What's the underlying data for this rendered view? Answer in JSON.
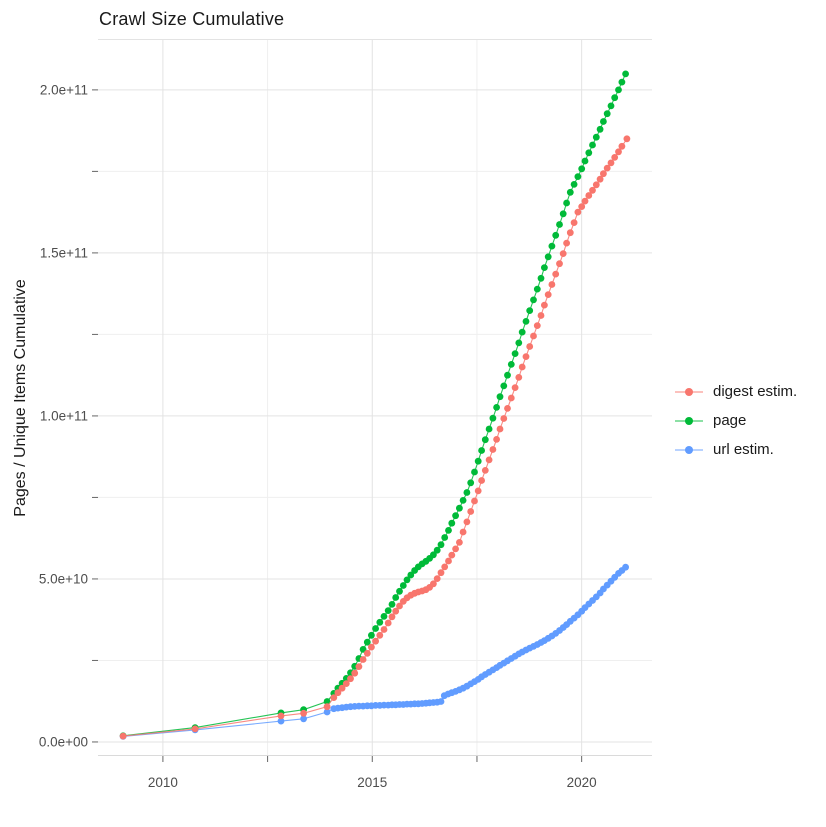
{
  "chart_data": {
    "type": "scatter-line",
    "title": "Crawl Size Cumulative",
    "xlabel": "",
    "ylabel": "Pages / Unique Items Cumulative",
    "value_unit": "point values = [year, pages in billions (1e9)]",
    "xlim": [
      2008.45,
      2021.68
    ],
    "ylim_e9": [
      -4.0,
      215.3
    ],
    "x_ticks": [
      {
        "value": 2010,
        "label": "2010"
      },
      {
        "value": 2015,
        "label": "2015"
      },
      {
        "value": 2020,
        "label": "2020"
      }
    ],
    "x_minor_ticks": [
      2012.5,
      2017.5
    ],
    "y_ticks": [
      {
        "value": 0,
        "label": "0.0e+00"
      },
      {
        "value": 50,
        "label": "5.0e+10"
      },
      {
        "value": 100,
        "label": "1.0e+11"
      },
      {
        "value": 150,
        "label": "1.5e+11"
      },
      {
        "value": 200,
        "label": "2.0e+11"
      }
    ],
    "y_minor_ticks": [
      25,
      75,
      125,
      175
    ],
    "grid": true,
    "legend_position": "right",
    "colors": {
      "background": "#FFFFFF",
      "grid_major": "#E3E3E3",
      "grid_minor": "#EFEFEF",
      "axis_line": "#DADADA",
      "tick_mark": "#666666",
      "tick_label": "#4D4D4D",
      "title_text": "#1A1A1A",
      "legend_text": "#1A1A1A"
    },
    "draw_order": [
      "page",
      "url estim.",
      "digest estim."
    ],
    "series": [
      {
        "name": "digest estim.",
        "color": "#F8766D",
        "points": [
          [
            2009.05,
            1.8
          ],
          [
            2010.77,
            4.0
          ],
          [
            2012.82,
            8.0
          ],
          [
            2013.36,
            8.8
          ],
          [
            2013.92,
            10.8
          ],
          [
            2014.08,
            13.6
          ],
          [
            2014.18,
            15.1
          ],
          [
            2014.28,
            16.5
          ],
          [
            2014.38,
            17.9
          ],
          [
            2014.48,
            19.4
          ],
          [
            2014.58,
            21.1
          ],
          [
            2014.68,
            23.1
          ],
          [
            2014.78,
            25.3
          ],
          [
            2014.88,
            27.2
          ],
          [
            2014.98,
            29.1
          ],
          [
            2015.08,
            30.9
          ],
          [
            2015.18,
            32.7
          ],
          [
            2015.28,
            34.5
          ],
          [
            2015.38,
            36.5
          ],
          [
            2015.47,
            38.4
          ],
          [
            2015.56,
            40.1
          ],
          [
            2015.65,
            41.7
          ],
          [
            2015.74,
            43.1
          ],
          [
            2015.83,
            44.2
          ],
          [
            2015.92,
            45.0
          ],
          [
            2016.01,
            45.6
          ],
          [
            2016.1,
            46.0
          ],
          [
            2016.19,
            46.3
          ],
          [
            2016.28,
            46.7
          ],
          [
            2016.37,
            47.4
          ],
          [
            2016.46,
            48.5
          ],
          [
            2016.55,
            50.1
          ],
          [
            2016.64,
            51.9
          ],
          [
            2016.73,
            53.7
          ],
          [
            2016.82,
            55.5
          ],
          [
            2016.9,
            57.3
          ],
          [
            2016.99,
            59.2
          ],
          [
            2017.08,
            61.2
          ],
          [
            2017.17,
            64.4
          ],
          [
            2017.26,
            67.5
          ],
          [
            2017.35,
            70.7
          ],
          [
            2017.44,
            73.9
          ],
          [
            2017.53,
            77.0
          ],
          [
            2017.61,
            80.2
          ],
          [
            2017.7,
            83.3
          ],
          [
            2017.79,
            86.5
          ],
          [
            2017.88,
            89.7
          ],
          [
            2017.97,
            92.8
          ],
          [
            2018.05,
            96.0
          ],
          [
            2018.14,
            99.2
          ],
          [
            2018.23,
            102.3
          ],
          [
            2018.32,
            105.5
          ],
          [
            2018.41,
            108.7
          ],
          [
            2018.5,
            111.8
          ],
          [
            2018.58,
            115.0
          ],
          [
            2018.67,
            118.2
          ],
          [
            2018.76,
            121.3
          ],
          [
            2018.85,
            124.5
          ],
          [
            2018.94,
            127.7
          ],
          [
            2019.03,
            130.8
          ],
          [
            2019.11,
            134.0
          ],
          [
            2019.2,
            137.2
          ],
          [
            2019.29,
            140.3
          ],
          [
            2019.38,
            143.5
          ],
          [
            2019.47,
            146.7
          ],
          [
            2019.56,
            149.8
          ],
          [
            2019.64,
            153.0
          ],
          [
            2019.73,
            156.2
          ],
          [
            2019.82,
            159.3
          ],
          [
            2019.91,
            162.5
          ],
          [
            2020.0,
            164.2
          ],
          [
            2020.08,
            165.9
          ],
          [
            2020.17,
            167.6
          ],
          [
            2020.26,
            169.2
          ],
          [
            2020.35,
            170.9
          ],
          [
            2020.44,
            172.6
          ],
          [
            2020.52,
            174.3
          ],
          [
            2020.61,
            176.0
          ],
          [
            2020.7,
            177.6
          ],
          [
            2020.79,
            179.3
          ],
          [
            2020.88,
            181.0
          ],
          [
            2020.96,
            182.7
          ],
          [
            2021.08,
            185.0
          ]
        ]
      },
      {
        "name": "page",
        "color": "#00BA38",
        "points": [
          [
            2009.05,
            1.9
          ],
          [
            2010.77,
            4.4
          ],
          [
            2012.82,
            8.9
          ],
          [
            2013.36,
            9.9
          ],
          [
            2013.92,
            12.4
          ],
          [
            2014.08,
            14.9
          ],
          [
            2014.18,
            16.5
          ],
          [
            2014.28,
            18.0
          ],
          [
            2014.38,
            19.5
          ],
          [
            2014.48,
            21.2
          ],
          [
            2014.58,
            23.2
          ],
          [
            2014.68,
            25.6
          ],
          [
            2014.78,
            28.4
          ],
          [
            2014.88,
            30.6
          ],
          [
            2014.98,
            32.7
          ],
          [
            2015.08,
            34.8
          ],
          [
            2015.18,
            36.7
          ],
          [
            2015.28,
            38.5
          ],
          [
            2015.38,
            40.3
          ],
          [
            2015.47,
            42.2
          ],
          [
            2015.56,
            44.3
          ],
          [
            2015.65,
            46.2
          ],
          [
            2015.74,
            48.0
          ],
          [
            2015.83,
            49.7
          ],
          [
            2015.92,
            51.2
          ],
          [
            2016.01,
            52.6
          ],
          [
            2016.1,
            53.7
          ],
          [
            2016.19,
            54.6
          ],
          [
            2016.28,
            55.4
          ],
          [
            2016.37,
            56.3
          ],
          [
            2016.46,
            57.4
          ],
          [
            2016.55,
            58.8
          ],
          [
            2016.64,
            60.5
          ],
          [
            2016.73,
            62.7
          ],
          [
            2016.82,
            64.9
          ],
          [
            2016.9,
            67.1
          ],
          [
            2016.99,
            69.4
          ],
          [
            2017.08,
            71.7
          ],
          [
            2017.17,
            74.1
          ],
          [
            2017.26,
            76.5
          ],
          [
            2017.35,
            79.5
          ],
          [
            2017.44,
            82.8
          ],
          [
            2017.53,
            86.1
          ],
          [
            2017.61,
            89.4
          ],
          [
            2017.7,
            92.7
          ],
          [
            2017.79,
            96.0
          ],
          [
            2017.88,
            99.3
          ],
          [
            2017.97,
            102.6
          ],
          [
            2018.05,
            105.9
          ],
          [
            2018.14,
            109.2
          ],
          [
            2018.23,
            112.5
          ],
          [
            2018.32,
            115.8
          ],
          [
            2018.41,
            119.1
          ],
          [
            2018.5,
            122.4
          ],
          [
            2018.58,
            125.7
          ],
          [
            2018.67,
            129.0
          ],
          [
            2018.76,
            132.3
          ],
          [
            2018.85,
            135.6
          ],
          [
            2018.94,
            138.9
          ],
          [
            2019.03,
            142.2
          ],
          [
            2019.11,
            145.5
          ],
          [
            2019.2,
            148.8
          ],
          [
            2019.29,
            152.1
          ],
          [
            2019.38,
            155.4
          ],
          [
            2019.47,
            158.7
          ],
          [
            2019.56,
            162.0
          ],
          [
            2019.64,
            165.3
          ],
          [
            2019.73,
            168.6
          ],
          [
            2019.82,
            171.0
          ],
          [
            2019.91,
            173.4
          ],
          [
            2020.0,
            175.8
          ],
          [
            2020.08,
            178.2
          ],
          [
            2020.17,
            180.7
          ],
          [
            2020.26,
            183.1
          ],
          [
            2020.35,
            185.5
          ],
          [
            2020.44,
            187.9
          ],
          [
            2020.52,
            190.3
          ],
          [
            2020.61,
            192.7
          ],
          [
            2020.7,
            195.1
          ],
          [
            2020.79,
            197.6
          ],
          [
            2020.88,
            200.0
          ],
          [
            2020.96,
            202.4
          ],
          [
            2021.05,
            204.9
          ]
        ]
      },
      {
        "name": "url estim.",
        "color": "#619CFF",
        "points": [
          [
            2009.05,
            1.7
          ],
          [
            2010.77,
            3.7
          ],
          [
            2012.82,
            6.4
          ],
          [
            2013.36,
            7.1
          ],
          [
            2013.92,
            9.2
          ],
          [
            2014.08,
            10.2
          ],
          [
            2014.18,
            10.4
          ],
          [
            2014.28,
            10.5
          ],
          [
            2014.38,
            10.7
          ],
          [
            2014.48,
            10.8
          ],
          [
            2014.58,
            10.9
          ],
          [
            2014.68,
            11.0
          ],
          [
            2014.78,
            11.0
          ],
          [
            2014.88,
            11.1
          ],
          [
            2014.98,
            11.1
          ],
          [
            2015.08,
            11.2
          ],
          [
            2015.18,
            11.2
          ],
          [
            2015.28,
            11.3
          ],
          [
            2015.38,
            11.3
          ],
          [
            2015.47,
            11.4
          ],
          [
            2015.56,
            11.4
          ],
          [
            2015.65,
            11.5
          ],
          [
            2015.74,
            11.5
          ],
          [
            2015.83,
            11.6
          ],
          [
            2015.92,
            11.6
          ],
          [
            2016.01,
            11.7
          ],
          [
            2016.1,
            11.7
          ],
          [
            2016.19,
            11.8
          ],
          [
            2016.28,
            11.9
          ],
          [
            2016.37,
            12.0
          ],
          [
            2016.46,
            12.1
          ],
          [
            2016.55,
            12.2
          ],
          [
            2016.64,
            12.4
          ],
          [
            2016.72,
            14.2
          ],
          [
            2016.81,
            14.7
          ],
          [
            2016.9,
            15.1
          ],
          [
            2016.99,
            15.5
          ],
          [
            2017.08,
            16.0
          ],
          [
            2017.17,
            16.5
          ],
          [
            2017.26,
            17.1
          ],
          [
            2017.35,
            17.8
          ],
          [
            2017.44,
            18.5
          ],
          [
            2017.53,
            19.2
          ],
          [
            2017.61,
            20.0
          ],
          [
            2017.7,
            20.7
          ],
          [
            2017.79,
            21.4
          ],
          [
            2017.88,
            22.1
          ],
          [
            2017.97,
            22.8
          ],
          [
            2018.05,
            23.5
          ],
          [
            2018.14,
            24.2
          ],
          [
            2018.23,
            24.9
          ],
          [
            2018.32,
            25.6
          ],
          [
            2018.41,
            26.3
          ],
          [
            2018.5,
            27.0
          ],
          [
            2018.58,
            27.6
          ],
          [
            2018.67,
            28.2
          ],
          [
            2018.76,
            28.8
          ],
          [
            2018.85,
            29.3
          ],
          [
            2018.94,
            29.9
          ],
          [
            2019.03,
            30.5
          ],
          [
            2019.11,
            31.1
          ],
          [
            2019.2,
            31.8
          ],
          [
            2019.29,
            32.5
          ],
          [
            2019.38,
            33.3
          ],
          [
            2019.47,
            34.2
          ],
          [
            2019.56,
            35.1
          ],
          [
            2019.64,
            36.0
          ],
          [
            2019.73,
            37.0
          ],
          [
            2019.82,
            38.0
          ],
          [
            2019.91,
            39.0
          ],
          [
            2020.0,
            40.1
          ],
          [
            2020.08,
            41.2
          ],
          [
            2020.17,
            42.3
          ],
          [
            2020.26,
            43.4
          ],
          [
            2020.35,
            44.5
          ],
          [
            2020.44,
            45.7
          ],
          [
            2020.52,
            46.9
          ],
          [
            2020.61,
            48.1
          ],
          [
            2020.7,
            49.3
          ],
          [
            2020.79,
            50.5
          ],
          [
            2020.88,
            51.7
          ],
          [
            2020.96,
            52.6
          ],
          [
            2021.05,
            53.6
          ]
        ]
      }
    ]
  }
}
